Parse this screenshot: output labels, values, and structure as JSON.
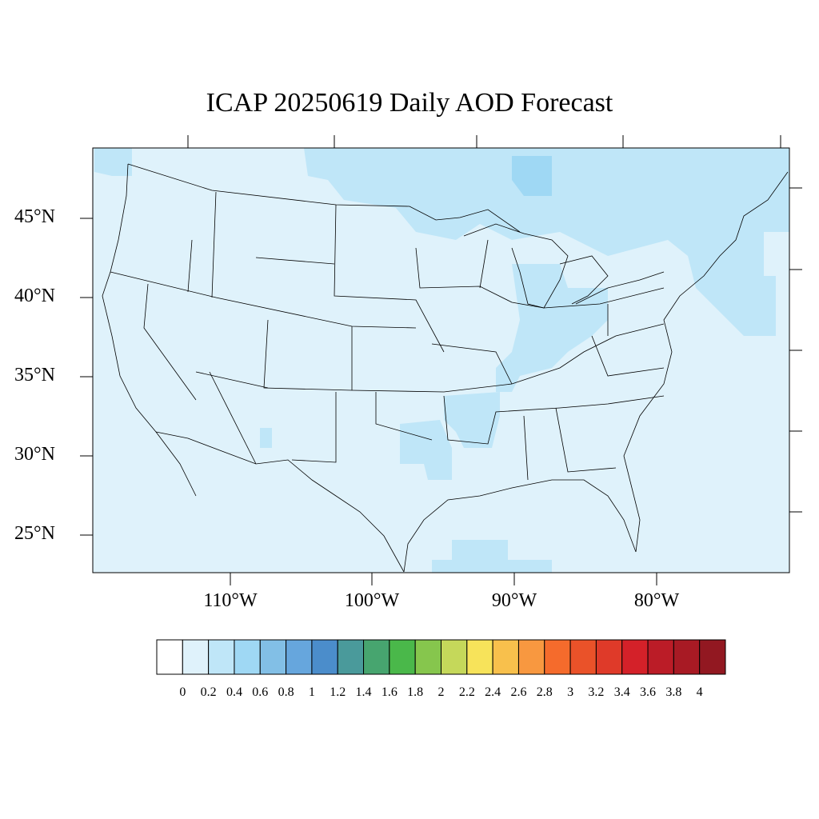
{
  "title": "ICAP 20250619 Daily AOD Forecast",
  "map": {
    "lat_labels": [
      "45°N",
      "40°N",
      "35°N",
      "30°N",
      "25°N"
    ],
    "lon_labels": [
      "110°W",
      "100°W",
      "90°W",
      "80°W"
    ],
    "ocean_land_base_color": "#dff2fb"
  },
  "colorbar": {
    "colors": [
      "#ffffff",
      "#dff2fb",
      "#bfe6f8",
      "#9fd8f4",
      "#82bfe6",
      "#66a6dd",
      "#4b8dcb",
      "#4a9a9b",
      "#47a56f",
      "#4ab84a",
      "#86c64d",
      "#c5d85a",
      "#f7e35a",
      "#f8c04c",
      "#f89840",
      "#f56b2c",
      "#ea5229",
      "#df3a29",
      "#d42129",
      "#bb1c27",
      "#a81a24",
      "#921821"
    ],
    "labels": [
      "0",
      "0.2",
      "0.4",
      "0.6",
      "0.8",
      "1",
      "1.2",
      "1.4",
      "1.6",
      "1.8",
      "2",
      "2.2",
      "2.4",
      "2.6",
      "2.8",
      "3",
      "3.2",
      "3.4",
      "3.6",
      "3.8",
      "4"
    ]
  }
}
